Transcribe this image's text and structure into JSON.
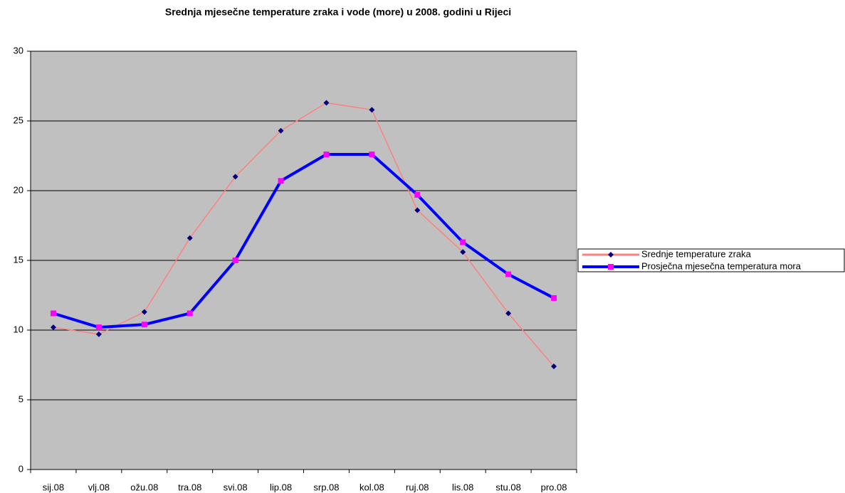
{
  "chart_data": {
    "type": "line",
    "title": "Srednja mjesečne temperature zraka i vode (more) u 2008. godini u Rijeci",
    "categories": [
      "sij.08",
      "vlj.08",
      "ožu.08",
      "tra.08",
      "svi.08",
      "lip.08",
      "srp.08",
      "kol.08",
      "ruj.08",
      "lis.08",
      "stu.08",
      "pro.08"
    ],
    "series": [
      {
        "name": "Srednje temperature zraka",
        "color": "#ff8080",
        "marker_color": "#000080",
        "values": [
          10.2,
          9.7,
          11.3,
          16.6,
          21.0,
          24.3,
          26.3,
          25.8,
          18.6,
          15.6,
          11.2,
          7.4
        ]
      },
      {
        "name": "Prosječna mjesečna temperatura mora",
        "color": "#0000ff",
        "marker_color": "#ff00ff",
        "values": [
          11.2,
          10.2,
          10.4,
          11.2,
          15.0,
          20.7,
          22.6,
          22.6,
          19.7,
          16.3,
          14.0,
          12.3
        ]
      }
    ],
    "ylim": [
      0,
      30
    ],
    "yticks": [
      0,
      5,
      10,
      15,
      20,
      25,
      30
    ],
    "grid": true,
    "legend": "right"
  }
}
